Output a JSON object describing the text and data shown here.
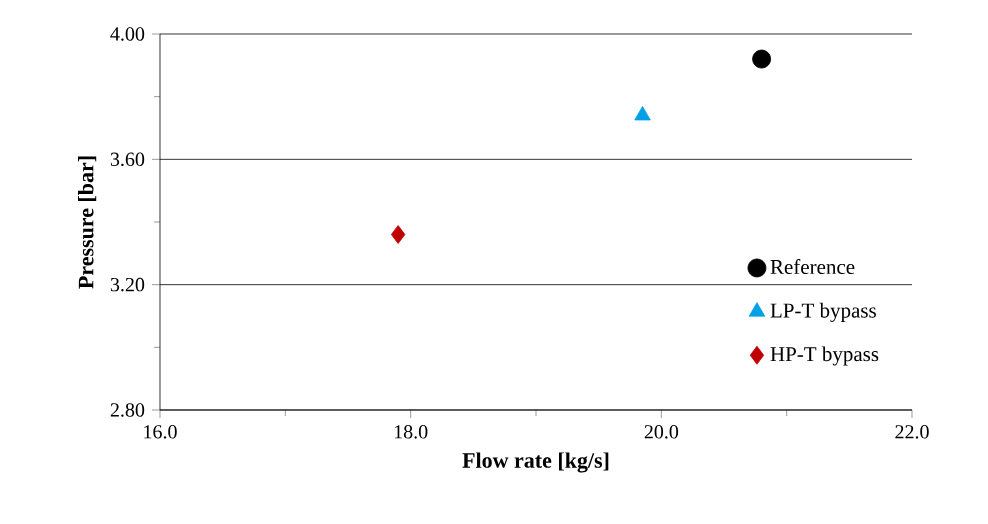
{
  "chart_data": {
    "type": "scatter",
    "xlabel": "Flow rate [kg/s]",
    "ylabel": "Pressure [bar]",
    "xlim": [
      16,
      22
    ],
    "ylim": [
      2.8,
      4.0
    ],
    "xticks": [
      {
        "value": 16,
        "label": "16.0"
      },
      {
        "value": 17,
        "label": null
      },
      {
        "value": 18,
        "label": "18.0"
      },
      {
        "value": 19,
        "label": null
      },
      {
        "value": 20,
        "label": "20.0"
      },
      {
        "value": 21,
        "label": null
      },
      {
        "value": 22,
        "label": "22.0"
      }
    ],
    "yticks": [
      {
        "value": 2.8,
        "label": "2.80"
      },
      {
        "value": 3.0,
        "label": null
      },
      {
        "value": 3.2,
        "label": "3.20"
      },
      {
        "value": 3.4,
        "label": null
      },
      {
        "value": 3.6,
        "label": "3.60"
      },
      {
        "value": 3.8,
        "label": null
      },
      {
        "value": 4.0,
        "label": "4.00"
      }
    ],
    "grid": "y",
    "legend": "bottom right",
    "series": [
      {
        "name": "Reference",
        "color": "#000000",
        "marker": "circle",
        "x": [
          20.8
        ],
        "values": [
          3.92
        ]
      },
      {
        "name": "LP-T bypass",
        "color": "#00a0e6",
        "marker": "triangle",
        "x": [
          19.85
        ],
        "values": [
          3.74
        ]
      },
      {
        "name": "HP-T bypass",
        "color": "#c00000",
        "marker": "diamond",
        "x": [
          17.9
        ],
        "values": [
          3.36
        ]
      }
    ]
  }
}
